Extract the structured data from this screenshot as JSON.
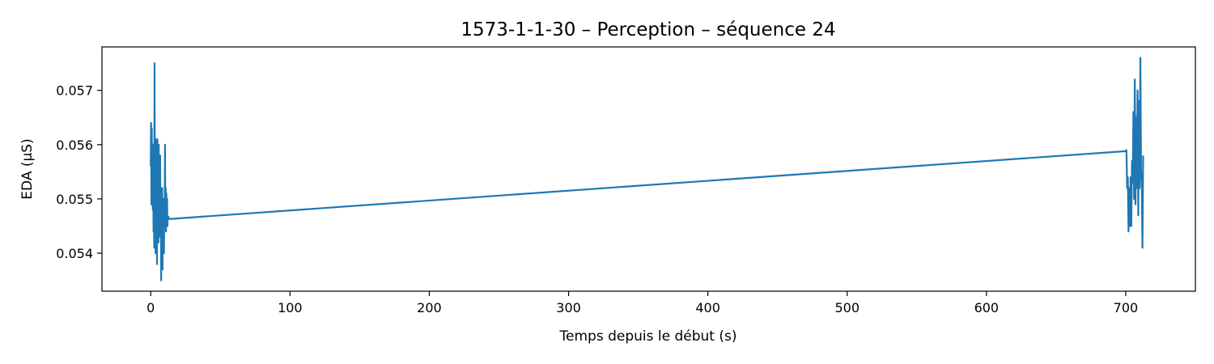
{
  "chart_data": {
    "type": "line",
    "title": "1573-1-1-30 – Perception – séquence 24",
    "xlabel": "Temps depuis le début (s)",
    "ylabel": "EDA (µS)",
    "xlim": [
      -35,
      750
    ],
    "ylim": [
      0.0533,
      0.0578
    ],
    "x_ticks": [
      0,
      100,
      200,
      300,
      400,
      500,
      600,
      700
    ],
    "x_tick_labels": [
      "0",
      "100",
      "200",
      "300",
      "400",
      "500",
      "600",
      "700"
    ],
    "y_ticks": [
      0.054,
      0.055,
      0.056,
      0.057
    ],
    "y_tick_labels": [
      "0.054",
      "0.055",
      "0.056",
      "0.057"
    ],
    "grid": false,
    "colors": {
      "line": "#1f77b4",
      "axes": "#000000",
      "background": "#ffffff"
    },
    "series": [
      {
        "x": [
          0.0,
          0.25,
          0.5,
          0.75,
          1.0,
          1.25,
          1.5,
          1.75,
          2.0,
          2.25,
          2.5,
          2.75,
          3.0,
          3.25,
          3.5,
          3.75,
          4.0,
          4.25,
          4.5,
          4.75,
          5.0,
          5.25,
          5.5,
          5.75,
          6.0,
          6.25,
          6.5,
          6.75,
          7.0,
          7.25,
          7.5,
          7.75,
          8.0,
          8.25,
          8.5,
          8.75,
          9.0,
          9.25,
          9.5,
          9.75,
          10.0,
          10.25,
          10.5,
          10.75,
          11.0,
          11.25,
          11.5,
          11.75,
          12.0,
          12.25,
          12.5,
          12.75,
          13.0,
          13.5,
          700.0,
          700.5,
          701.0,
          701.5,
          702.0,
          702.5,
          703.0,
          703.5,
          704.0,
          704.5,
          705.0,
          705.5,
          706.0,
          706.5,
          707.0,
          707.5,
          708.0,
          708.5,
          709.0,
          709.5,
          710.0,
          710.5,
          711.0,
          711.5,
          712.0,
          712.5
        ],
        "y": [
          0.0556,
          0.0564,
          0.0549,
          0.0563,
          0.0552,
          0.0557,
          0.0548,
          0.056,
          0.0544,
          0.0552,
          0.0541,
          0.0575,
          0.0546,
          0.0551,
          0.054,
          0.0561,
          0.0544,
          0.0553,
          0.0538,
          0.0561,
          0.0547,
          0.0552,
          0.0542,
          0.056,
          0.0547,
          0.0554,
          0.0543,
          0.0558,
          0.0546,
          0.0552,
          0.0535,
          0.0551,
          0.0544,
          0.0552,
          0.0537,
          0.0549,
          0.0544,
          0.055,
          0.054,
          0.0549,
          0.0545,
          0.056,
          0.0546,
          0.0552,
          0.0544,
          0.0551,
          0.0546,
          0.055,
          0.0545,
          0.05468,
          0.05465,
          0.05467,
          0.05464,
          0.05463,
          0.05588,
          0.0559,
          0.0552,
          0.0554,
          0.0544,
          0.0552,
          0.0545,
          0.0554,
          0.0545,
          0.0557,
          0.0553,
          0.0566,
          0.055,
          0.0572,
          0.0549,
          0.0565,
          0.0552,
          0.057,
          0.0547,
          0.0568,
          0.0552,
          0.0576,
          0.0555,
          0.0553,
          0.0541,
          0.0558
        ]
      }
    ]
  }
}
